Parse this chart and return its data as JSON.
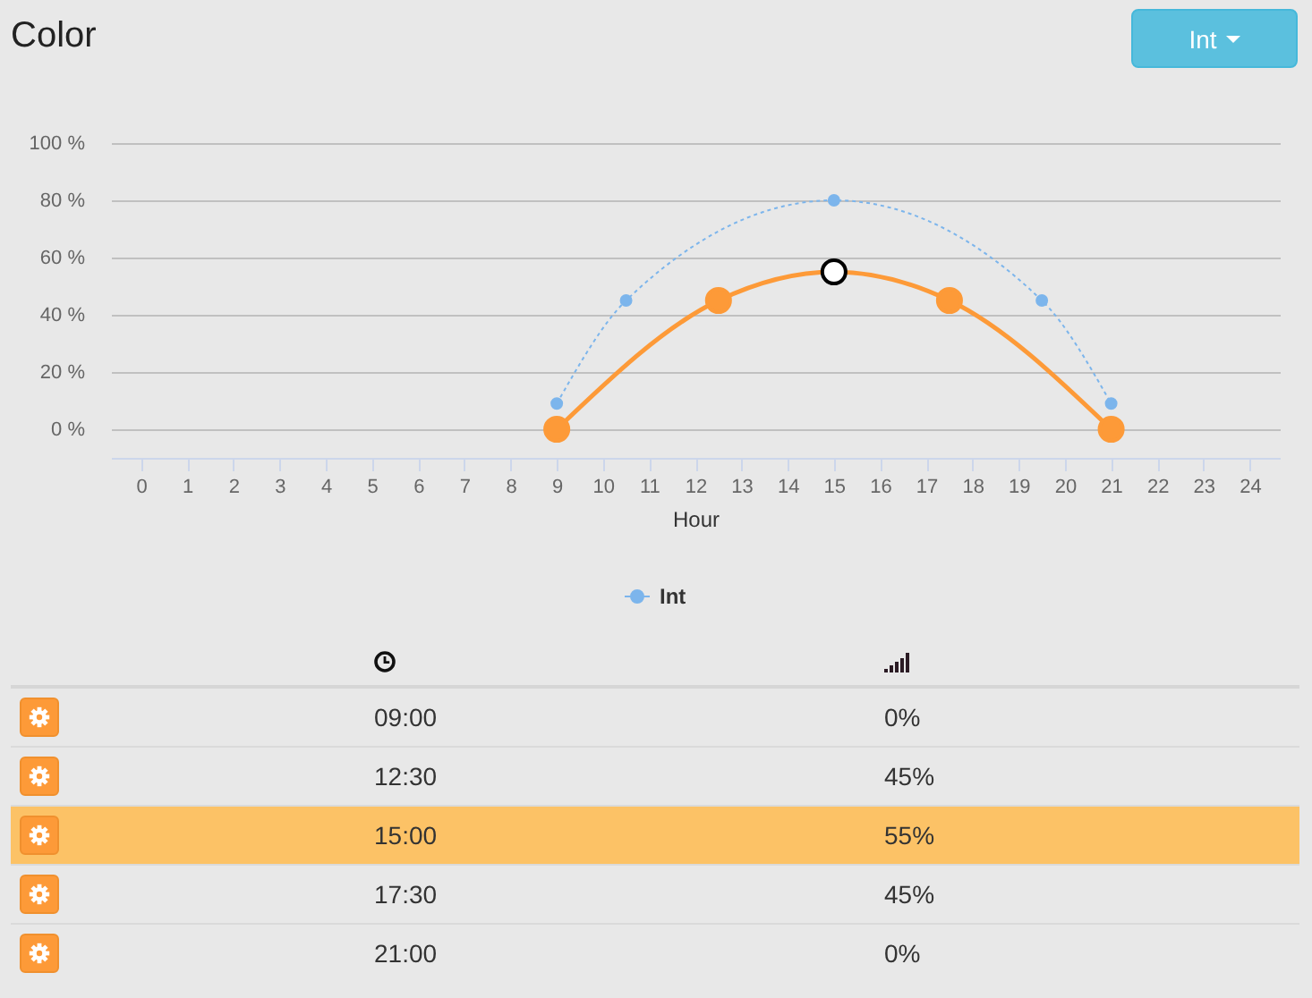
{
  "chart_data": [
    {
      "type": "line",
      "title": "Color",
      "xlabel": "Hour",
      "x": [
        9,
        12.5,
        15,
        17.5,
        21
      ],
      "series": [
        {
          "name": "Int",
          "color": "#7cb5ec",
          "x": [
            9,
            10.5,
            15,
            19.5,
            21
          ],
          "values": [
            9,
            45,
            80,
            45,
            9
          ],
          "line_style": "dashed"
        },
        {
          "color": "#fd9a38",
          "values": [
            0,
            45,
            55,
            45,
            0
          ],
          "colors": [
            "#fd9a38",
            "#fd9a38",
            "#ffffff",
            "#fd9a38",
            "#fd9a38"
          ],
          "line_style": "solid"
        }
      ],
      "xlim": [
        -0.65,
        24.65
      ],
      "xticks": [
        0,
        1,
        2,
        3,
        4,
        5,
        6,
        7,
        8,
        9,
        10,
        11,
        12,
        13,
        14,
        15,
        16,
        17,
        18,
        19,
        20,
        21,
        22,
        23,
        24
      ],
      "ylim": [
        -10,
        100
      ],
      "yticks": [
        {
          "value": 0,
          "label": "0 %"
        },
        {
          "value": 20,
          "label": "20 %"
        },
        {
          "value": 40,
          "label": "40 %"
        },
        {
          "value": 60,
          "label": "60 %"
        },
        {
          "value": 80,
          "label": "80 %"
        },
        {
          "value": 100,
          "label": "100 %"
        }
      ],
      "grid": "y",
      "legend": "bottom",
      "marker": "circle"
    },
    {
      "type": "other",
      "categories": [
        "09:00",
        "12:30",
        "15:00",
        "17:30",
        "21:00"
      ],
      "value_labels": [
        "0%",
        "45%",
        "55%",
        "45%",
        "0%"
      ],
      "colors": [
        "#e8e8e8",
        "#e8e8e8",
        "#fcc266",
        "#e8e8e8",
        "#e8e8e8"
      ]
    }
  ]
}
